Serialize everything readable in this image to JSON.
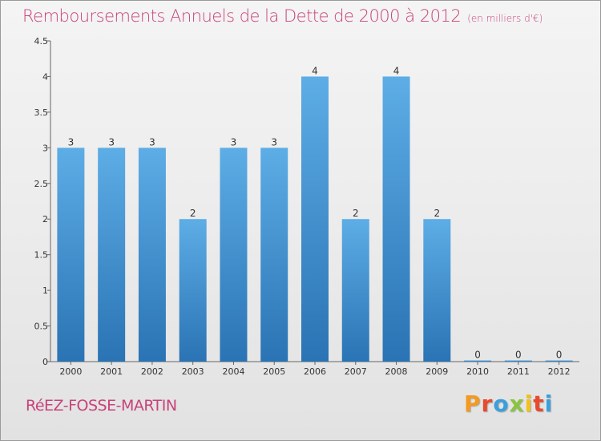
{
  "title": "Remboursements Annuels de la Dette de 2000 à 2012",
  "subtitle": "(en milliers d'€)",
  "commune": "RéEZ-FOSSE-MARTIN",
  "logo": {
    "letters": [
      "P",
      "r",
      "o",
      "x",
      "i",
      "t",
      "i"
    ],
    "colors": [
      "#f39a1f",
      "#e84a2b",
      "#3aa0dc",
      "#8bc53f",
      "#f3c21a",
      "#e84a2b",
      "#3aa0dc"
    ]
  },
  "colors": {
    "bar_light": "#5dade6",
    "bar_dark": "#2a73b4",
    "title": "#c8437a"
  },
  "chart_data": {
    "type": "bar",
    "categories": [
      "2000",
      "2001",
      "2002",
      "2003",
      "2004",
      "2005",
      "2006",
      "2007",
      "2008",
      "2009",
      "2010",
      "2011",
      "2012"
    ],
    "values": [
      3,
      3,
      3,
      2,
      3,
      3,
      4,
      2,
      4,
      2,
      0,
      0,
      0
    ],
    "value_labels": [
      "3",
      "3",
      "3",
      "2",
      "3",
      "3",
      "4",
      "2",
      "4",
      "2",
      "0",
      "0",
      "0"
    ],
    "y_ticks": [
      "0",
      "0.5",
      "1",
      "1.5",
      "2",
      "2.5",
      "3",
      "3.5",
      "4",
      "4.5"
    ],
    "y_tick_values": [
      0,
      0.5,
      1,
      1.5,
      2,
      2.5,
      3,
      3.5,
      4,
      4.5
    ],
    "ylim": [
      0,
      4.5
    ],
    "grid": false,
    "legend": "none"
  }
}
